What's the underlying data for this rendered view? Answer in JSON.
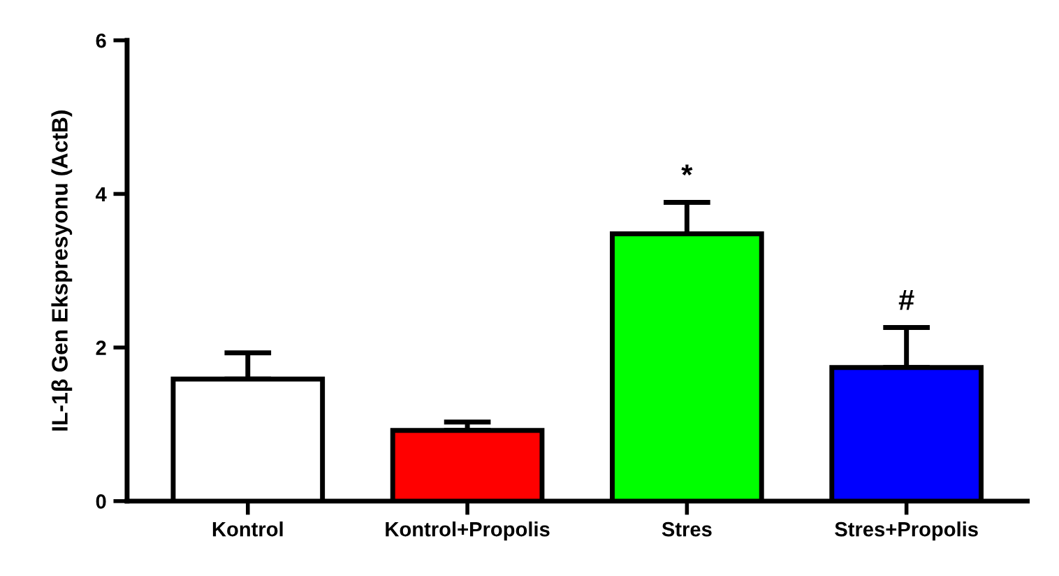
{
  "chart_data": {
    "type": "bar",
    "ylabel": "IL-1β Gen Ekspresyonu (ActB)",
    "categories": [
      "Kontrol",
      "Kontrol+Propolis",
      "Stres",
      "Stres+Propolis"
    ],
    "values": [
      1.59,
      0.92,
      3.48,
      1.74
    ],
    "colors": [
      "#ffffff",
      "#ff0000",
      "#00ff00",
      "#0000ff"
    ],
    "errors": [
      [
        1.59,
        1.93
      ],
      [
        0.92,
        1.03
      ],
      [
        3.48,
        3.89
      ],
      [
        1.74,
        2.26
      ]
    ],
    "annotations": [
      {
        "text": "*",
        "x": "Stres",
        "y": 3.89
      },
      {
        "text": "#",
        "x": "Stres+Propolis",
        "y": 2.26
      }
    ],
    "ylim": [
      0,
      6
    ],
    "yticks": [
      0,
      2,
      4,
      6
    ],
    "grid": false,
    "legend": false
  }
}
